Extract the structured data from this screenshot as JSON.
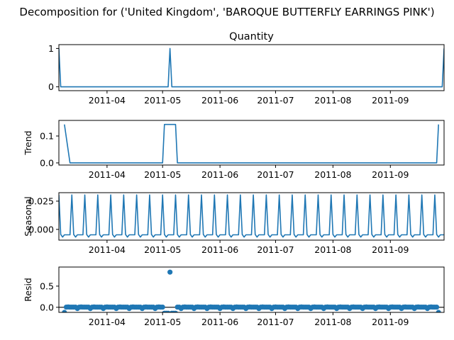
{
  "figure": {
    "suptitle": "Decomposition for ('United Kingdom', 'BAROQUE BUTTERFLY EARRINGS PINK')"
  },
  "colors": {
    "series": "#1f77b4",
    "baseline": "#000000",
    "axes": "#000000",
    "background": "#ffffff"
  },
  "chart_data": [
    {
      "type": "line",
      "title": "Quantity",
      "ylabel": "",
      "x_format": "date",
      "xlim": [
        "2011-03-06",
        "2011-09-30"
      ],
      "xticks": [
        "2011-04",
        "2011-05",
        "2011-06",
        "2011-07",
        "2011-08",
        "2011-09"
      ],
      "ylim": [
        -0.1,
        1.1
      ],
      "yticks": [
        0,
        1
      ],
      "ytick_labels": [
        "0",
        "1"
      ],
      "grid": false,
      "series": [
        {
          "points": [
            [
              "2011-03-06",
              1
            ],
            [
              "2011-03-07",
              0
            ],
            [
              "2011-05-04",
              0
            ],
            [
              "2011-05-05",
              1
            ],
            [
              "2011-05-06",
              0
            ],
            [
              "2011-09-29",
              0
            ],
            [
              "2011-09-30",
              1
            ]
          ]
        }
      ]
    },
    {
      "type": "line",
      "title": "",
      "ylabel": "Trend",
      "x_format": "date",
      "xlim": [
        "2011-03-06",
        "2011-09-30"
      ],
      "xticks": [
        "2011-04",
        "2011-05",
        "2011-06",
        "2011-07",
        "2011-08",
        "2011-09"
      ],
      "ylim": [
        -0.008,
        0.158
      ],
      "yticks": [
        0,
        0.1
      ],
      "ytick_labels": [
        "0.0",
        "0.1"
      ],
      "grid": false,
      "series": [
        {
          "points": [
            [
              "2011-03-09",
              0.143
            ],
            [
              "2011-03-12",
              0
            ],
            [
              "2011-05-01",
              0
            ],
            [
              "2011-05-02",
              0.143
            ],
            [
              "2011-05-08",
              0.143
            ],
            [
              "2011-05-09",
              0
            ],
            [
              "2011-09-26",
              0
            ],
            [
              "2011-09-27",
              0.143
            ]
          ]
        }
      ]
    },
    {
      "type": "line",
      "title": "",
      "ylabel": "Seasonal",
      "x_format": "date",
      "xlim": [
        "2011-03-06",
        "2011-09-30"
      ],
      "xticks": [
        "2011-04",
        "2011-05",
        "2011-06",
        "2011-07",
        "2011-08",
        "2011-09"
      ],
      "ylim": [
        -0.0095,
        0.0325
      ],
      "yticks": [
        0,
        0.025
      ],
      "ytick_labels": [
        "0.000",
        "0.025"
      ],
      "grid": false,
      "period_days": 7,
      "weekly_pattern": [
        0.0305,
        -0.0045,
        -0.0068,
        -0.0048,
        -0.0048,
        -0.0048,
        -0.0048
      ],
      "series_start": "2011-03-06",
      "series_end": "2011-09-30"
    },
    {
      "type": "scatter",
      "title": "",
      "ylabel": "Resid",
      "x_format": "date",
      "xlim": [
        "2011-03-06",
        "2011-09-30"
      ],
      "xticks": [
        "2011-04",
        "2011-05",
        "2011-06",
        "2011-07",
        "2011-08",
        "2011-09"
      ],
      "ylim": [
        -0.12,
        0.95
      ],
      "yticks": [
        0,
        0.5
      ],
      "ytick_labels": [
        "0.0",
        "0.5"
      ],
      "grid": false,
      "baseline": 0,
      "series_start": "2011-03-09",
      "series_end": "2011-09-27",
      "default_pattern": [
        -0.03,
        0.004,
        0.007,
        0.004,
        0.004,
        0.004,
        0.004
      ],
      "overrides": [
        [
          "2011-03-09",
          -0.12
        ],
        [
          "2011-05-02",
          -0.14
        ],
        [
          "2011-05-03",
          -0.14
        ],
        [
          "2011-05-04",
          -0.14
        ],
        [
          "2011-05-05",
          0.83
        ],
        [
          "2011-05-06",
          -0.14
        ],
        [
          "2011-05-07",
          -0.14
        ],
        [
          "2011-05-08",
          -0.14
        ],
        [
          "2011-09-27",
          -0.12
        ]
      ]
    }
  ]
}
